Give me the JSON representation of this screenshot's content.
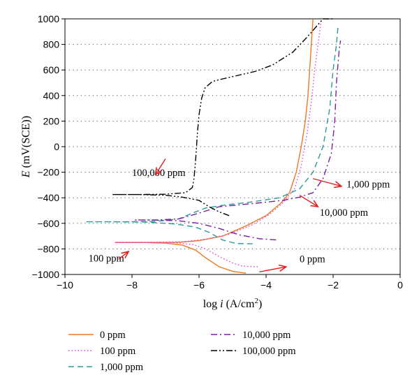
{
  "chart_data": {
    "type": "line",
    "xlabel_main": "log",
    "xlabel_italic": "i",
    "xlabel_unit": "(A/cm",
    "xlabel_sup": "2",
    "xlabel_close": ")",
    "ylabel_italic": "E",
    "ylabel_unit": "(mV(SCE))",
    "xlim": [
      -10,
      0
    ],
    "ylim": [
      -1000,
      1000
    ],
    "x_ticks": [
      "−10",
      "−8",
      "−6",
      "−4",
      "−2",
      "0"
    ],
    "x_tick_values": [
      -10,
      -8,
      -6,
      -4,
      -2,
      0
    ],
    "y_ticks": [
      "1000",
      "800",
      "600",
      "400",
      "200",
      "0",
      "−200",
      "−400",
      "−600",
      "−800",
      "−1000"
    ],
    "y_tick_values": [
      1000,
      800,
      600,
      400,
      200,
      0,
      -200,
      -400,
      -600,
      -800,
      -1000
    ],
    "grid": "horizontal dotted",
    "legend_placement": "bottom",
    "series": [
      {
        "name": "0 ppm",
        "color": "#f0781e",
        "dash": "solid",
        "points": [
          [
            -4.6,
            -990
          ],
          [
            -5.0,
            -975
          ],
          [
            -5.4,
            -940
          ],
          [
            -5.8,
            -870
          ],
          [
            -6.1,
            -810
          ],
          [
            -6.5,
            -770
          ],
          [
            -7.0,
            -755
          ],
          [
            -7.6,
            -750
          ],
          [
            -8.3,
            -750
          ],
          [
            -8.5,
            -750
          ],
          [
            -7.6,
            -750
          ],
          [
            -6.6,
            -748
          ],
          [
            -6.0,
            -735
          ],
          [
            -5.3,
            -700
          ],
          [
            -4.6,
            -620
          ],
          [
            -4.0,
            -540
          ],
          [
            -3.55,
            -440
          ],
          [
            -3.3,
            -360
          ],
          [
            -3.1,
            -200
          ],
          [
            -2.95,
            0
          ],
          [
            -2.83,
            200
          ],
          [
            -2.75,
            400
          ],
          [
            -2.7,
            600
          ],
          [
            -2.65,
            800
          ],
          [
            -2.6,
            1000
          ]
        ]
      },
      {
        "name": "100 ppm",
        "color": "#e040e0",
        "dash": "dot",
        "points": [
          [
            -4.25,
            -940
          ],
          [
            -4.7,
            -935
          ],
          [
            -5.0,
            -910
          ],
          [
            -5.4,
            -860
          ],
          [
            -5.8,
            -800
          ],
          [
            -6.2,
            -765
          ],
          [
            -6.8,
            -750
          ],
          [
            -7.6,
            -748
          ],
          [
            -8.5,
            -748
          ],
          [
            -7.4,
            -748
          ],
          [
            -6.5,
            -745
          ],
          [
            -5.8,
            -725
          ],
          [
            -5.1,
            -685
          ],
          [
            -4.4,
            -610
          ],
          [
            -3.9,
            -530
          ],
          [
            -3.5,
            -440
          ],
          [
            -3.15,
            -330
          ],
          [
            -2.95,
            -150
          ],
          [
            -2.78,
            100
          ],
          [
            -2.65,
            350
          ],
          [
            -2.55,
            600
          ],
          [
            -2.45,
            800
          ],
          [
            -2.35,
            1000
          ]
        ]
      },
      {
        "name": "1,000 ppm",
        "color": "#2a9a9a",
        "dash": "dash",
        "points": [
          [
            -4.4,
            -760
          ],
          [
            -4.9,
            -758
          ],
          [
            -5.3,
            -730
          ],
          [
            -5.7,
            -670
          ],
          [
            -6.1,
            -630
          ],
          [
            -6.7,
            -605
          ],
          [
            -7.6,
            -590
          ],
          [
            -8.6,
            -588
          ],
          [
            -9.4,
            -588
          ],
          [
            -8.4,
            -588
          ],
          [
            -7.3,
            -585
          ],
          [
            -6.6,
            -565
          ],
          [
            -6.2,
            -520
          ],
          [
            -5.8,
            -480
          ],
          [
            -5.2,
            -455
          ],
          [
            -4.5,
            -435
          ],
          [
            -3.6,
            -400
          ],
          [
            -3.0,
            -330
          ],
          [
            -2.6,
            -200
          ],
          [
            -2.3,
            0
          ],
          [
            -2.1,
            300
          ],
          [
            -2.0,
            600
          ],
          [
            -1.9,
            800
          ],
          [
            -1.85,
            950
          ]
        ]
      },
      {
        "name": "10,000 ppm",
        "color": "#7a1fa2",
        "dash": "dashdot",
        "points": [
          [
            -3.7,
            -730
          ],
          [
            -4.2,
            -720
          ],
          [
            -4.8,
            -690
          ],
          [
            -5.4,
            -640
          ],
          [
            -6.0,
            -600
          ],
          [
            -6.6,
            -580
          ],
          [
            -7.3,
            -575
          ],
          [
            -7.9,
            -573
          ],
          [
            -7.2,
            -573
          ],
          [
            -6.6,
            -565
          ],
          [
            -6.0,
            -520
          ],
          [
            -5.4,
            -470
          ],
          [
            -4.8,
            -455
          ],
          [
            -4.2,
            -440
          ],
          [
            -3.5,
            -420
          ],
          [
            -3.0,
            -395
          ],
          [
            -2.6,
            -360
          ],
          [
            -2.3,
            -250
          ],
          [
            -2.05,
            -50
          ],
          [
            -1.95,
            200
          ],
          [
            -1.9,
            500
          ],
          [
            -1.82,
            750
          ],
          [
            -1.78,
            830
          ]
        ]
      },
      {
        "name": "100,000 ppm",
        "color": "#000000",
        "dash": "dashdotdot",
        "points": [
          [
            -5.1,
            -540
          ],
          [
            -5.4,
            -510
          ],
          [
            -5.7,
            -470
          ],
          [
            -6.0,
            -420
          ],
          [
            -6.5,
            -395
          ],
          [
            -7.0,
            -380
          ],
          [
            -7.8,
            -375
          ],
          [
            -8.6,
            -375
          ],
          [
            -7.8,
            -375
          ],
          [
            -7.0,
            -372
          ],
          [
            -6.4,
            -360
          ],
          [
            -6.2,
            -320
          ],
          [
            -6.15,
            -250
          ],
          [
            -6.1,
            -100
          ],
          [
            -6.05,
            100
          ],
          [
            -6.0,
            250
          ],
          [
            -5.92,
            380
          ],
          [
            -5.82,
            460
          ],
          [
            -5.6,
            510
          ],
          [
            -5.3,
            530
          ],
          [
            -4.8,
            560
          ],
          [
            -4.3,
            590
          ],
          [
            -3.8,
            640
          ],
          [
            -3.2,
            740
          ],
          [
            -2.8,
            850
          ],
          [
            -2.5,
            940
          ],
          [
            -2.3,
            1000
          ],
          [
            -2.0,
            1000
          ]
        ]
      }
    ],
    "annotations": [
      {
        "text": "100,000 ppm",
        "x": -7.8,
        "y": -230
      },
      {
        "text": "1,000 ppm",
        "x": -1.0,
        "y": -310
      },
      {
        "text": "10,000 ppm",
        "x": -0.5,
        "y": -530
      },
      {
        "text": "100 ppm",
        "x": -8.3,
        "y": -900
      },
      {
        "text": "0 ppm",
        "x": -2.5,
        "y": -905
      }
    ],
    "legend": [
      {
        "label": "0 ppm",
        "series": 0
      },
      {
        "label": "100 ppm",
        "series": 1
      },
      {
        "label": "1,000 ppm",
        "series": 2
      },
      {
        "label": "10,000 ppm",
        "series": 3
      },
      {
        "label": "100,000 ppm",
        "series": 4
      }
    ],
    "arrow_color": "#e02020"
  }
}
